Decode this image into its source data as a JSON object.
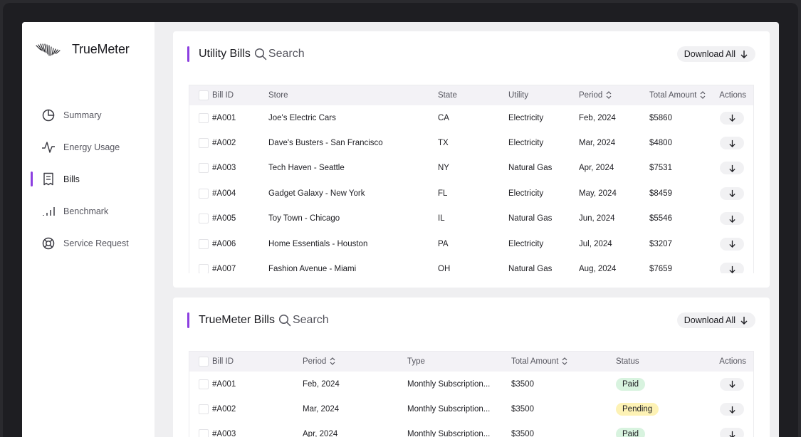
{
  "app": {
    "name": "TrueMeter"
  },
  "sidebar": {
    "items": [
      {
        "label": "Summary",
        "icon": "summary-icon",
        "active": false
      },
      {
        "label": "Energy Usage",
        "icon": "energy-usage-icon",
        "active": false
      },
      {
        "label": "Bills",
        "icon": "bills-icon",
        "active": true
      },
      {
        "label": "Benchmark",
        "icon": "benchmark-icon",
        "active": false
      },
      {
        "label": "Service Request",
        "icon": "service-request-icon",
        "active": false
      }
    ]
  },
  "colors": {
    "accent": "#8c3fe0",
    "paid": "#d8f3df",
    "pending": "#fdf2b5"
  },
  "utility_bills": {
    "title": "Utility Bills",
    "search_placeholder": "Search",
    "download_label": "Download All",
    "columns": [
      "Bill ID",
      "Store",
      "State",
      "Utility",
      "Period",
      "Total Amount",
      "Actions"
    ],
    "rows": [
      [
        "#A001",
        "Joe's Electric Cars",
        "CA",
        "Electricity",
        "Feb, 2024",
        "$5860"
      ],
      [
        "#A002",
        "Dave's Busters - San Francisco",
        "TX",
        "Electricity",
        "Mar, 2024",
        "$4800"
      ],
      [
        "#A003",
        "Tech Haven - Seattle",
        "NY",
        "Natural Gas",
        "Apr, 2024",
        "$7531"
      ],
      [
        "#A004",
        "Gadget Galaxy - New York",
        "FL",
        "Electricity",
        "May, 2024",
        "$8459"
      ],
      [
        "#A005",
        "Toy Town - Chicago",
        "IL",
        "Natural Gas",
        "Jun, 2024",
        "$5546"
      ],
      [
        "#A006",
        "Home Essentials - Houston",
        "PA",
        "Electricity",
        "Jul, 2024",
        "$3207"
      ],
      [
        "#A007",
        "Fashion Avenue - Miami",
        "OH",
        "Natural Gas",
        "Aug, 2024",
        "$7659"
      ]
    ]
  },
  "truemeter_bills": {
    "title": "TrueMeter Bills",
    "search_placeholder": "Search",
    "download_label": "Download All",
    "columns": [
      "Bill ID",
      "Period",
      "Type",
      "Total Amount",
      "Status",
      "Actions"
    ],
    "rows": [
      [
        "#A001",
        "Feb, 2024",
        "Monthly Subscription...",
        "$3500",
        "Paid"
      ],
      [
        "#A002",
        "Mar, 2024",
        "Monthly Subscription...",
        "$3500",
        "Pending"
      ],
      [
        "#A003",
        "Apr, 2024",
        "Monthly Subscription...",
        "$3500",
        "Paid"
      ]
    ]
  }
}
